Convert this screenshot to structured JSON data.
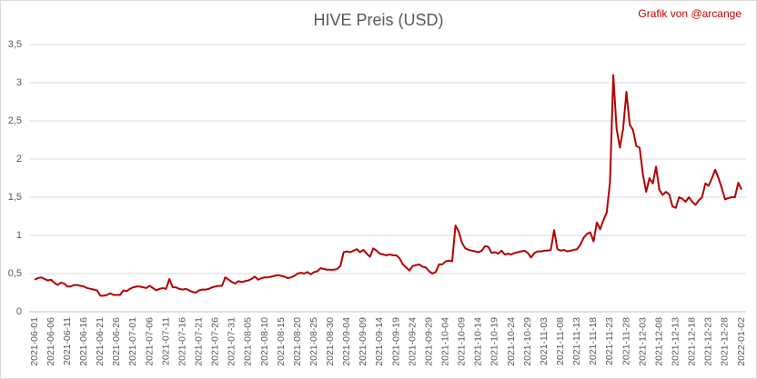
{
  "chart_data": {
    "type": "line",
    "title": "HIVE Preis (USD)",
    "annotation": "Grafik von @arcange",
    "categories": [
      "2021-06-01",
      null,
      null,
      null,
      null,
      "2021-06-06",
      null,
      null,
      null,
      null,
      "2021-06-11",
      null,
      null,
      null,
      null,
      "2021-06-16",
      null,
      null,
      null,
      null,
      "2021-06-21",
      null,
      null,
      null,
      null,
      "2021-06-26",
      null,
      null,
      null,
      null,
      "2021-07-01",
      null,
      null,
      null,
      null,
      "2021-07-06",
      null,
      null,
      null,
      null,
      "2021-07-11",
      null,
      null,
      null,
      null,
      "2021-07-16",
      null,
      null,
      null,
      null,
      "2021-07-21",
      null,
      null,
      null,
      null,
      "2021-07-26",
      null,
      null,
      null,
      null,
      "2021-07-31",
      null,
      null,
      null,
      null,
      "2021-08-05",
      null,
      null,
      null,
      null,
      "2021-08-10",
      null,
      null,
      null,
      null,
      "2021-08-15",
      null,
      null,
      null,
      null,
      "2021-08-20",
      null,
      null,
      null,
      null,
      "2021-08-25",
      null,
      null,
      null,
      null,
      "2021-08-30",
      null,
      null,
      null,
      null,
      "2021-09-04",
      null,
      null,
      null,
      null,
      "2021-09-09",
      null,
      null,
      null,
      null,
      "2021-09-14",
      null,
      null,
      null,
      null,
      "2021-09-19",
      null,
      null,
      null,
      null,
      "2021-09-24",
      null,
      null,
      null,
      null,
      "2021-09-29",
      null,
      null,
      null,
      null,
      "2021-10-04",
      null,
      null,
      null,
      null,
      "2021-10-09",
      null,
      null,
      null,
      null,
      "2021-10-14",
      null,
      null,
      null,
      null,
      "2021-10-19",
      null,
      null,
      null,
      null,
      "2021-10-24",
      null,
      null,
      null,
      null,
      "2021-10-29",
      null,
      null,
      null,
      null,
      "2021-11-03",
      null,
      null,
      null,
      null,
      "2021-11-08",
      null,
      null,
      null,
      null,
      "2021-11-13",
      null,
      null,
      null,
      null,
      "2021-11-18",
      null,
      null,
      null,
      null,
      "2021-11-23",
      null,
      null,
      null,
      null,
      "2021-11-28",
      null,
      null,
      null,
      null,
      "2021-12-03",
      null,
      null,
      null,
      null,
      "2021-12-08",
      null,
      null,
      null,
      null,
      "2021-12-13",
      null,
      null,
      null,
      null,
      "2021-12-18",
      null,
      null,
      null,
      null,
      "2021-12-23",
      null,
      null,
      null,
      null,
      "2021-12-28",
      null,
      null,
      null,
      null,
      "2022-01-02"
    ],
    "series": [
      {
        "color": "#b40000",
        "values": [
          0.42,
          0.44,
          0.45,
          0.43,
          0.41,
          0.42,
          0.38,
          0.35,
          0.38,
          0.37,
          0.33,
          0.33,
          0.35,
          0.35,
          0.34,
          0.33,
          0.31,
          0.3,
          0.29,
          0.28,
          0.21,
          0.21,
          0.22,
          0.24,
          0.22,
          0.22,
          0.22,
          0.28,
          0.27,
          0.3,
          0.32,
          0.33,
          0.33,
          0.32,
          0.31,
          0.34,
          0.31,
          0.28,
          0.3,
          0.31,
          0.3,
          0.43,
          0.32,
          0.32,
          0.3,
          0.29,
          0.3,
          0.28,
          0.26,
          0.25,
          0.28,
          0.29,
          0.29,
          0.3,
          0.32,
          0.33,
          0.34,
          0.34,
          0.45,
          0.42,
          0.39,
          0.37,
          0.4,
          0.39,
          0.4,
          0.41,
          0.43,
          0.46,
          0.42,
          0.44,
          0.45,
          0.45,
          0.46,
          0.47,
          0.48,
          0.47,
          0.46,
          0.44,
          0.45,
          0.47,
          0.5,
          0.51,
          0.5,
          0.52,
          0.49,
          0.52,
          0.53,
          0.57,
          0.56,
          0.55,
          0.55,
          0.55,
          0.56,
          0.6,
          0.78,
          0.79,
          0.78,
          0.8,
          0.82,
          0.78,
          0.81,
          0.76,
          0.72,
          0.83,
          0.8,
          0.76,
          0.75,
          0.74,
          0.75,
          0.74,
          0.74,
          0.7,
          0.62,
          0.58,
          0.54,
          0.6,
          0.61,
          0.62,
          0.59,
          0.58,
          0.53,
          0.5,
          0.52,
          0.62,
          0.62,
          0.66,
          0.67,
          0.66,
          1.13,
          1.05,
          0.9,
          0.83,
          0.81,
          0.8,
          0.79,
          0.78,
          0.8,
          0.86,
          0.85,
          0.77,
          0.78,
          0.76,
          0.8,
          0.75,
          0.76,
          0.75,
          0.77,
          0.78,
          0.79,
          0.8,
          0.77,
          0.71,
          0.77,
          0.79,
          0.79,
          0.8,
          0.8,
          0.81,
          1.07,
          0.82,
          0.8,
          0.81,
          0.79,
          0.8,
          0.81,
          0.82,
          0.88,
          0.97,
          1.02,
          1.04,
          0.92,
          1.17,
          1.08,
          1.2,
          1.3,
          1.7,
          3.1,
          2.4,
          2.15,
          2.4,
          2.88,
          2.45,
          2.38,
          2.17,
          2.15,
          1.8,
          1.57,
          1.75,
          1.68,
          1.9,
          1.6,
          1.53,
          1.57,
          1.54,
          1.38,
          1.36,
          1.5,
          1.48,
          1.44,
          1.5,
          1.44,
          1.4,
          1.46,
          1.5,
          1.68,
          1.65,
          1.75,
          1.86,
          1.75,
          1.62,
          1.47,
          1.49,
          1.5,
          1.5,
          1.69,
          1.6
        ]
      }
    ],
    "ylim": [
      0,
      3.5
    ],
    "yticks": [
      0,
      {
        "value": 0.5,
        "label": "0,5"
      },
      1,
      {
        "value": 1.5,
        "label": "1,5"
      },
      2,
      {
        "value": 2.5,
        "label": "2,5"
      },
      3,
      {
        "value": 3.5,
        "label": "3,5"
      }
    ],
    "grid": true
  }
}
